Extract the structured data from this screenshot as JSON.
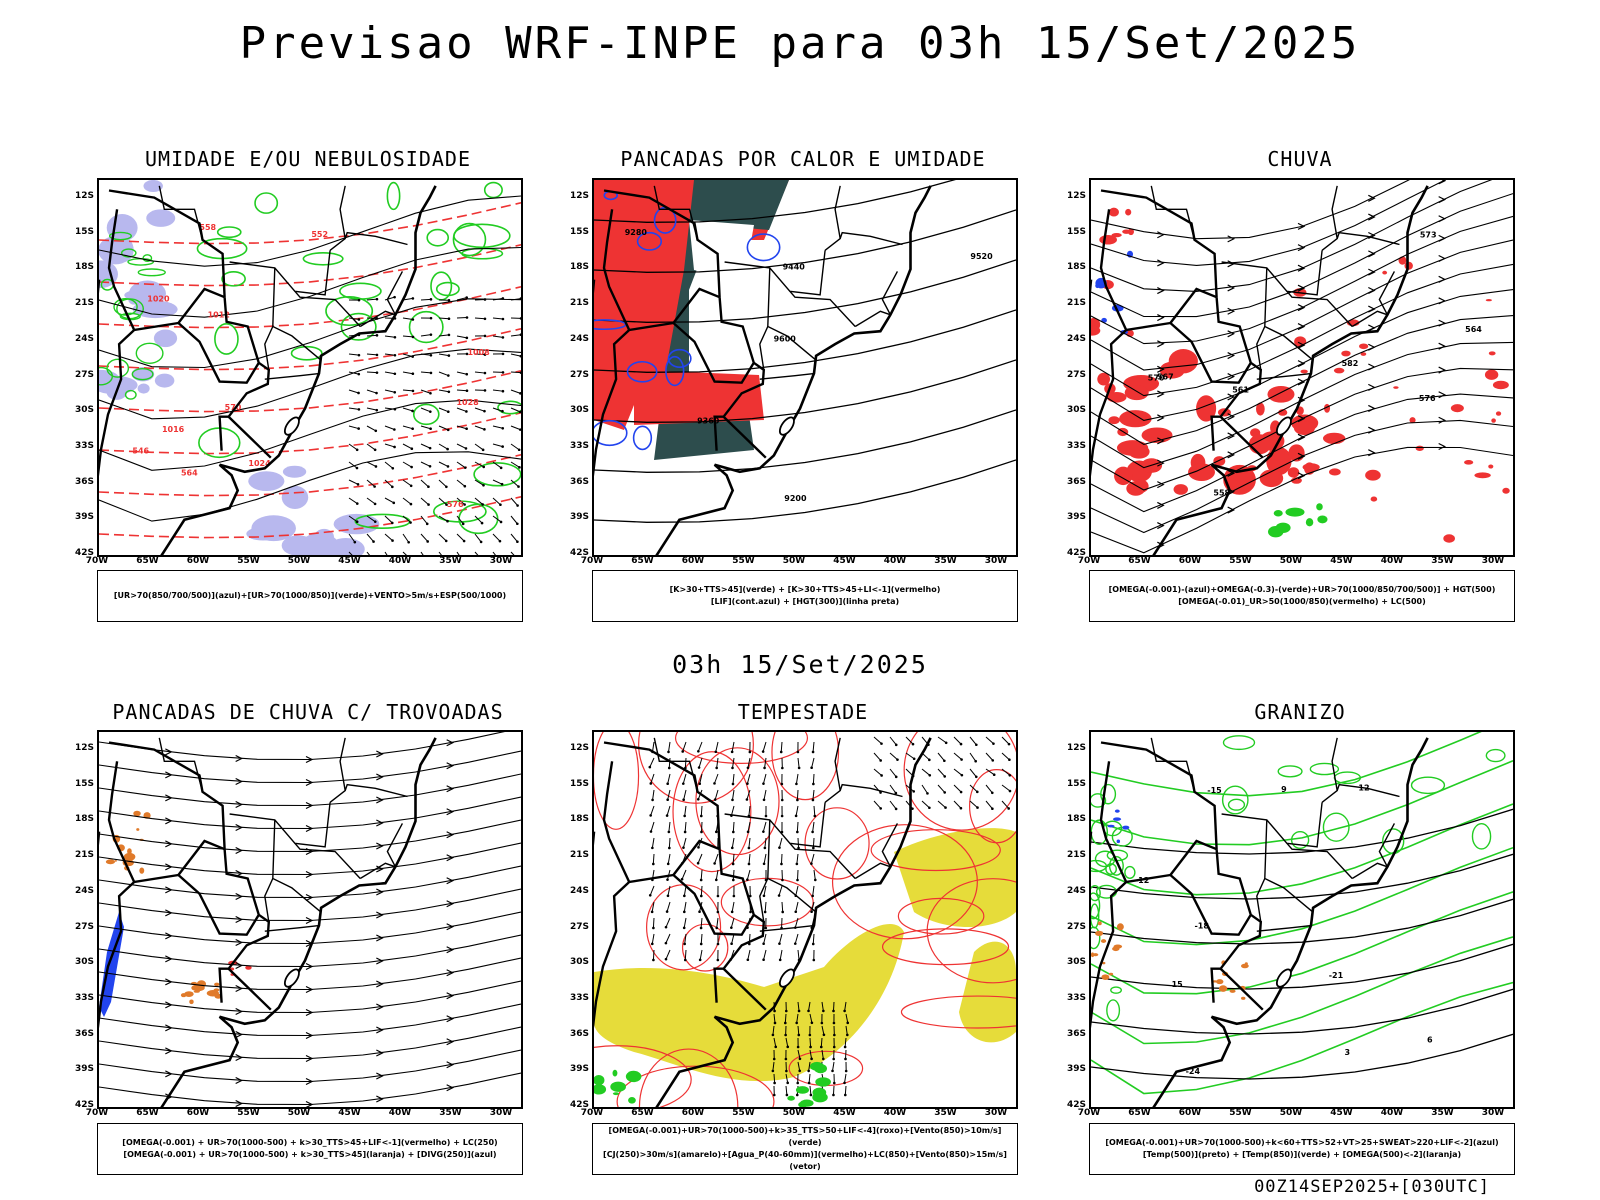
{
  "title": "Previsao WRF-INPE  para 03h 15/Set/2025",
  "mid_title": "03h 15/Set/2025",
  "footer": "00Z14SEP2025+[030UTC]",
  "axes": {
    "lat_labels": [
      "12S",
      "15S",
      "18S",
      "21S",
      "24S",
      "27S",
      "30S",
      "33S",
      "36S",
      "39S",
      "42S"
    ],
    "lon_labels": [
      "70W",
      "65W",
      "60W",
      "55W",
      "50W",
      "45W",
      "40W",
      "35W",
      "30W"
    ]
  },
  "colors": {
    "humidity_blue": "#b8b8ee",
    "green": "#22cc22",
    "red": "#ee3333",
    "dark_teal": "#2d4d4d",
    "yellow": "#e6dc3a",
    "orange": "#e07a2a",
    "blue": "#2244ee"
  },
  "chart_data": [
    {
      "type": "map",
      "title": "UMIDADE E/OU NEBULOSIDADE",
      "legend": [
        "[UR>70(850/700/500)](azul)+[UR>70(1000/850)](verde)+VENTO>5m/s+ESP(500/1000)"
      ],
      "contour_labels": [
        "1012",
        "1016",
        "1020",
        "1024",
        "1028",
        "1008",
        "576",
        "570",
        "564",
        "558",
        "552",
        "546"
      ]
    },
    {
      "type": "map",
      "title": "PANCADAS POR CALOR E UMIDADE",
      "legend": [
        "[K>30+TTS>45](verde) + [K>30+TTS>45+LI<-1](vermelho)",
        "[LIF](cont.azul) + [HGT(300)](linha preta)"
      ],
      "contour_labels": [
        "9600",
        "9520",
        "9440",
        "9360",
        "9280",
        "9200"
      ]
    },
    {
      "type": "map",
      "title": "CHUVA",
      "legend": [
        "[OMEGA(-0.001)-(azul)+OMEGA(-0.3)-(verde)+UR>70(1000/850/700/500)] + HGT(500)",
        "[OMEGA(-0.01)_UR>50(1000/850)(vermelho) + LC(500)"
      ],
      "contour_labels": [
        "582",
        "576",
        "573",
        "570",
        "567",
        "564",
        "561",
        "558"
      ]
    },
    {
      "type": "map",
      "title": "PANCADAS DE CHUVA C/ TROVOADAS",
      "legend": [
        "[OMEGA(-0.001) + UR>70(1000-500) + k>30_TTS>45+LIF<-1](vermelho) + LC(250)",
        "[OMEGA(-0.001) + UR>70(1000-500) + k>30_TTS>45](laranja) + [DIVG(250)](azul)"
      ],
      "contour_labels": []
    },
    {
      "type": "map",
      "title": "TEMPESTADE",
      "legend": [
        "[OMEGA(-0.001)+UR>70(1000-500)+k>35_TTS>50+LIF<-4](roxo)+[Vento(850)>10m/s](verde)",
        "[CJ(250)>30m/s](amarelo)+[Agua_P(40-60mm)](vermelho)+LC(850)+[Vento(850)>15m/s](vetor)"
      ],
      "contour_labels": []
    },
    {
      "type": "map",
      "title": "GRANIZO",
      "legend": [
        "[OMEGA(-0.001)+UR>70(1000-500)+k<60+TTS>52+VT>25+SWEAT>220+LIF<-2](azul)",
        "[Temp(500)](preto) + [Temp(850)](verde) + [OMEGA(500)<-2](laranja)"
      ],
      "contour_labels": [
        "-12",
        "-15",
        "-18",
        "-21",
        "-24",
        "15",
        "12",
        "9",
        "6",
        "3"
      ]
    }
  ]
}
